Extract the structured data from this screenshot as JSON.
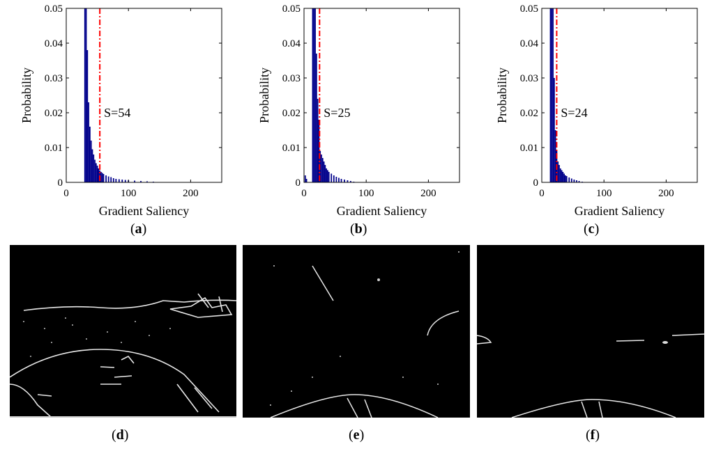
{
  "chart_data": [
    {
      "type": "bar",
      "panel": "a",
      "xlabel": "Gradient Saliency",
      "ylabel": "Probability",
      "xlim": [
        0,
        250
      ],
      "ylim": [
        0,
        0.05
      ],
      "xticks": [
        "0",
        "100",
        "200"
      ],
      "yticks": [
        "0",
        "0.01",
        "0.02",
        "0.03",
        "0.04",
        "0.05"
      ],
      "bar_color": "#00008b",
      "threshold": 54,
      "threshold_color": "#ff0000",
      "threshold_label": "S=54",
      "x": [
        30,
        32,
        34,
        36,
        38,
        40,
        42,
        44,
        46,
        48,
        50,
        52,
        54,
        56,
        58,
        60,
        64,
        68,
        72,
        76,
        80,
        85,
        90,
        95,
        100,
        110,
        120,
        130,
        140,
        150
      ],
      "values": [
        0.05,
        0.05,
        0.038,
        0.023,
        0.016,
        0.012,
        0.0095,
        0.008,
        0.0065,
        0.0055,
        0.0048,
        0.004,
        0.0034,
        0.003,
        0.0027,
        0.0024,
        0.002,
        0.0017,
        0.0015,
        0.0012,
        0.001,
        0.0009,
        0.0008,
        0.0007,
        0.0006,
        0.0005,
        0.0004,
        0.0003,
        0.0002,
        0.0001
      ]
    },
    {
      "type": "bar",
      "panel": "b",
      "xlabel": "Gradient Saliency",
      "ylabel": "Probability",
      "xlim": [
        0,
        250
      ],
      "ylim": [
        0,
        0.05
      ],
      "xticks": [
        "0",
        "100",
        "200"
      ],
      "yticks": [
        "0",
        "0.01",
        "0.02",
        "0.03",
        "0.04",
        "0.05"
      ],
      "bar_color": "#00008b",
      "threshold": 25,
      "threshold_color": "#ff0000",
      "threshold_label": "S=25",
      "x": [
        2,
        4,
        14,
        16,
        18,
        20,
        22,
        24,
        26,
        28,
        30,
        32,
        34,
        36,
        38,
        40,
        44,
        48,
        52,
        56,
        60,
        65,
        70,
        75,
        80
      ],
      "values": [
        0.002,
        0.001,
        0.05,
        0.05,
        0.05,
        0.037,
        0.024,
        0.018,
        0.009,
        0.008,
        0.007,
        0.006,
        0.005,
        0.004,
        0.0035,
        0.003,
        0.0025,
        0.002,
        0.0016,
        0.0013,
        0.001,
        0.0008,
        0.0006,
        0.0004,
        0.0002
      ]
    },
    {
      "type": "bar",
      "panel": "c",
      "xlabel": "Gradient Saliency",
      "ylabel": "Probability",
      "xlim": [
        0,
        250
      ],
      "ylim": [
        0,
        0.05
      ],
      "xticks": [
        "0",
        "100",
        "200"
      ],
      "yticks": [
        "0",
        "0.01",
        "0.02",
        "0.03",
        "0.04",
        "0.05"
      ],
      "bar_color": "#00008b",
      "threshold": 24,
      "threshold_color": "#ff0000",
      "threshold_label": "S=24",
      "x": [
        14,
        16,
        18,
        20,
        22,
        24,
        26,
        28,
        30,
        32,
        34,
        36,
        38,
        40,
        44,
        48,
        52,
        56,
        60,
        65
      ],
      "values": [
        0.05,
        0.05,
        0.05,
        0.03,
        0.015,
        0.009,
        0.006,
        0.005,
        0.004,
        0.0035,
        0.003,
        0.0025,
        0.002,
        0.0018,
        0.0014,
        0.0011,
        0.0008,
        0.0006,
        0.0004,
        0.0002
      ]
    }
  ],
  "captions": {
    "a": "a",
    "b": "b",
    "c": "c",
    "d": "d",
    "e": "e",
    "f": "f"
  },
  "edge_images": [
    {
      "panel": "d",
      "icon": "edge-map-boat-bow-with-shoreline"
    },
    {
      "panel": "e",
      "icon": "edge-map-boat-bow-open-sea"
    },
    {
      "panel": "f",
      "icon": "edge-map-boat-bow-horizon"
    }
  ]
}
